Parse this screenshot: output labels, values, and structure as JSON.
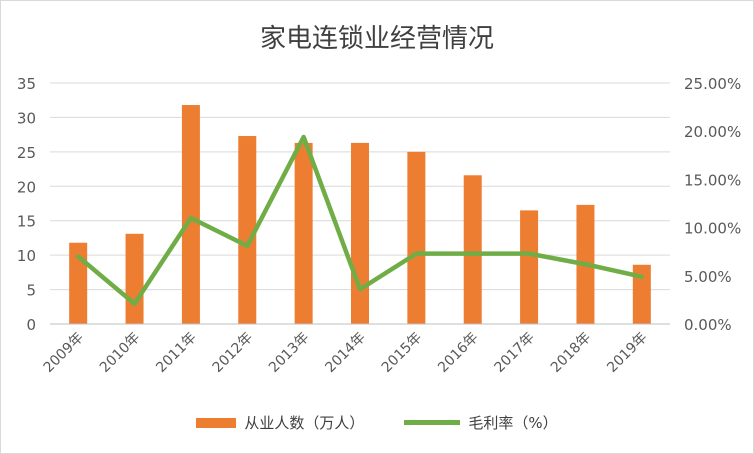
{
  "chart_data": {
    "type": "bar",
    "title": "家电连锁业经营情况",
    "categories": [
      "2009年",
      "2010年",
      "2011年",
      "2012年",
      "2013年",
      "2014年",
      "2015年",
      "2016年",
      "2017年",
      "2018年",
      "2019年"
    ],
    "series": [
      {
        "name": "从业人数（万人）",
        "type": "bar",
        "axis": "left",
        "color": "#ed7d31",
        "values": [
          11.8,
          13.1,
          31.8,
          27.3,
          26.3,
          26.3,
          25.0,
          21.6,
          16.5,
          17.3,
          8.6
        ]
      },
      {
        "name": "毛利率（%）",
        "type": "line",
        "axis": "right",
        "color": "#70ad47",
        "values": [
          0.07,
          0.021,
          0.11,
          0.081,
          0.194,
          0.036,
          0.073,
          0.073,
          0.073,
          0.062,
          0.049
        ]
      }
    ],
    "y_left": {
      "min": 0,
      "max": 35,
      "ticks": [
        "0",
        "5",
        "10",
        "15",
        "20",
        "25",
        "30",
        "35"
      ]
    },
    "y_right": {
      "min": 0,
      "max": 0.25,
      "ticks": [
        "0.00%",
        "5.00%",
        "10.00%",
        "15.00%",
        "20.00%",
        "25.00%"
      ]
    },
    "grid": true,
    "legend_position": "bottom"
  }
}
